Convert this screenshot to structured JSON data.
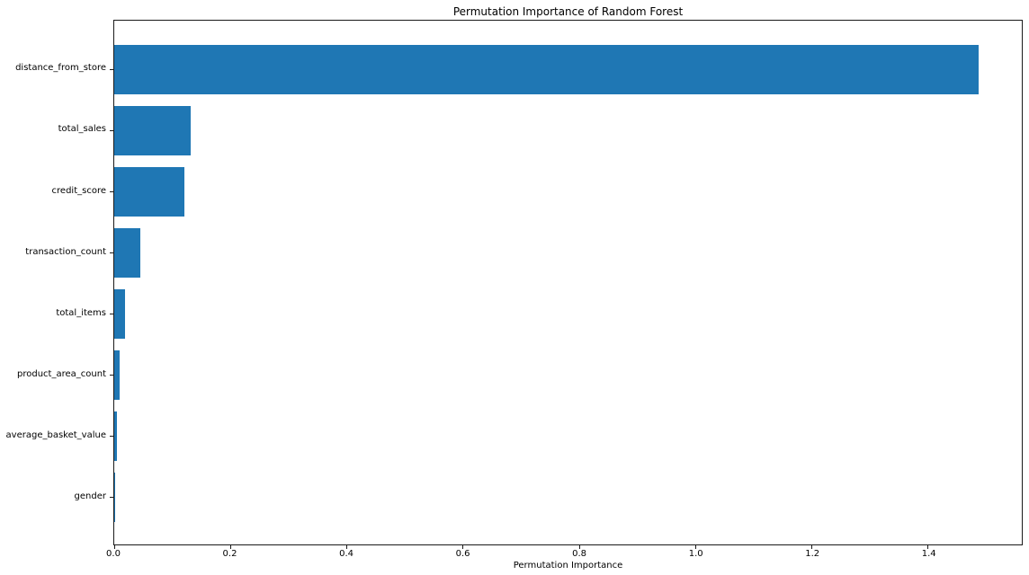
{
  "figure": {
    "background": "#ffffff"
  },
  "chart_data": {
    "type": "bar",
    "orientation": "horizontal",
    "title": "Permutation Importance of Random Forest",
    "xlabel": "Permutation Importance",
    "ylabel": "",
    "category_order": "top_to_bottom",
    "categories": [
      "distance_from_store",
      "total_sales",
      "credit_score",
      "transaction_count",
      "total_items",
      "product_area_count",
      "average_basket_value",
      "gender"
    ],
    "values": [
      1.487,
      0.131,
      0.12,
      0.045,
      0.018,
      0.009,
      0.005,
      0.0005
    ],
    "xlim": [
      0,
      1.561
    ],
    "xtick_values": [
      0.0,
      0.2,
      0.4,
      0.6,
      0.8,
      1.0,
      1.2,
      1.4
    ],
    "xtick_labels": [
      "0.0",
      "0.2",
      "0.4",
      "0.6",
      "0.8",
      "1.0",
      "1.2",
      "1.4"
    ],
    "bar_color": "#1f77b4",
    "axis_color": "#1a1a1a",
    "text_color": "#000000",
    "grid": false,
    "legend": null
  }
}
